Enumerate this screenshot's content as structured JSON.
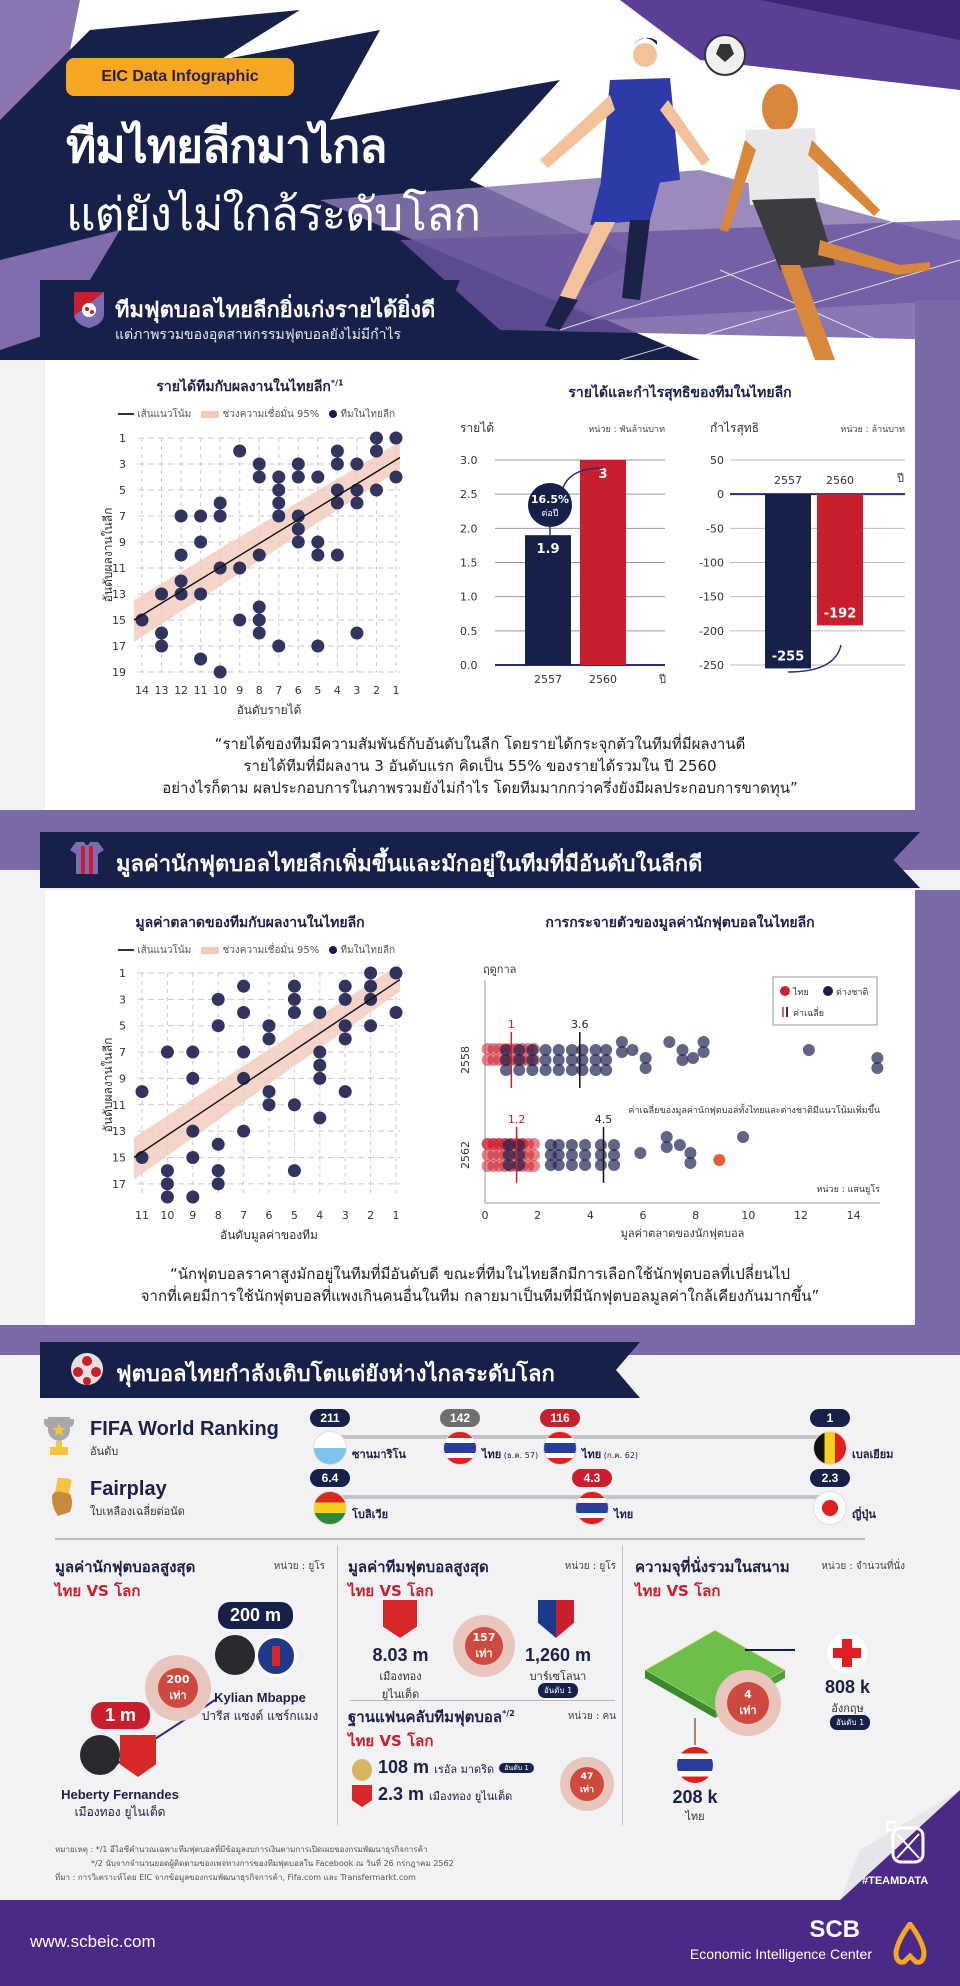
{
  "hero": {
    "badge": "EIC Data Infographic",
    "title_line1": "ทีมไทยลีกมาไกล",
    "title_line2": "แต่ยังไม่ใกล้ระดับโลก"
  },
  "section1": {
    "title": "ทีมฟุตบอลไทยลีกยิ่งเก่งรายได้ยิ่งดี",
    "subtitle": "แต่ภาพรวมของอุตสาหกรรมฟุตบอลยังไม่มีกำไร",
    "quote_lines": [
      "“รายได้ของทีมมีความสัมพันธ์กับอันดับในลีก โดยรายได้กระจุกตัวในทีมที่มีผลงานดี",
      "รายได้ทีมที่มีผลงาน 3 อันดับแรก คิดเป็น 55% ของรายได้รวมใน ปี 2560",
      "อย่างไรก็ตาม ผลประกอบการในภาพรวมยังไม่กำไร โดยทีมมากกว่าครึ่งยังมีผลประกอบการขาดทุน”"
    ]
  },
  "section2": {
    "title": "มูลค่านักฟุตบอลไทยลีกเพิ่มขึ้นและมักอยู่ในทีมที่มีอันดับในลีกดี",
    "quote_lines": [
      "“นักฟุตบอลราคาสูงมักอยู่ในทีมที่มีอันดับดี ขณะที่ทีมในไทยลีกมีการเลือกใช้นักฟุตบอลที่เปลี่ยนไป",
      "จากที่เคยมีการใช้นักฟุตบอลที่แพงเกินคนอื่นในทีม กลายมาเป็นทีมที่มีนักฟุตบอลมูลค่าใกล้เคียงกันมากขึ้น”"
    ]
  },
  "legend_common": {
    "trend": "เส้นแนวโน้ม",
    "ci": "ช่วงความเชื่อมั่น 95%",
    "teams": "ทีมในไทยลีก"
  },
  "chart_data": [
    {
      "type": "scatter",
      "title": "รายได้ทีมกับผลงานในไทยลีก",
      "title_note": "*/1",
      "xlabel": "อันดับรายได้",
      "ylabel": "อันดับผลงานในลีก",
      "x_ticks": [
        14,
        13,
        12,
        11,
        10,
        9,
        8,
        7,
        6,
        5,
        4,
        3,
        2,
        1
      ],
      "y_ticks": [
        1,
        3,
        5,
        7,
        9,
        11,
        13,
        15,
        17,
        19
      ],
      "x_reversed": true,
      "y_reversed": true,
      "grid": true,
      "points": [
        [
          1,
          1
        ],
        [
          2,
          1
        ],
        [
          2,
          2
        ],
        [
          4,
          2
        ],
        [
          9,
          2
        ],
        [
          3,
          3
        ],
        [
          4,
          3
        ],
        [
          6,
          3
        ],
        [
          8,
          3
        ],
        [
          1,
          4
        ],
        [
          6,
          4
        ],
        [
          5,
          4
        ],
        [
          7,
          4
        ],
        [
          8,
          4
        ],
        [
          2,
          5
        ],
        [
          3,
          5
        ],
        [
          4,
          5
        ],
        [
          7,
          5
        ],
        [
          3,
          6
        ],
        [
          4,
          6
        ],
        [
          7,
          6
        ],
        [
          10,
          6
        ],
        [
          6,
          7
        ],
        [
          7,
          7
        ],
        [
          10,
          7
        ],
        [
          12,
          7
        ],
        [
          11,
          7
        ],
        [
          6,
          8
        ],
        [
          5,
          9
        ],
        [
          6,
          9
        ],
        [
          11,
          9
        ],
        [
          4,
          10
        ],
        [
          5,
          10
        ],
        [
          8,
          10
        ],
        [
          12,
          10
        ],
        [
          9,
          11
        ],
        [
          10,
          11
        ],
        [
          12,
          12
        ],
        [
          11,
          13
        ],
        [
          12,
          13
        ],
        [
          13,
          13
        ],
        [
          8,
          14
        ],
        [
          8,
          15
        ],
        [
          9,
          15
        ],
        [
          14,
          15
        ],
        [
          3,
          16
        ],
        [
          8,
          16
        ],
        [
          13,
          16
        ],
        [
          5,
          17
        ],
        [
          7,
          17
        ],
        [
          13,
          17
        ],
        [
          11,
          18
        ],
        [
          10,
          19
        ]
      ],
      "trend_line": {
        "from": [
          14,
          15
        ],
        "to": [
          1,
          2.5
        ]
      }
    },
    {
      "type": "bar",
      "title": "รายได้และกำไรสุทธิของทีมในไทยลีก",
      "subcharts": [
        {
          "ylabel": "รายได้",
          "unit": "หน่วย : พันล้านบาท",
          "xlabel": "ปี",
          "categories": [
            "2557",
            "2560"
          ],
          "values": [
            1.9,
            3
          ],
          "colors": [
            "#162049",
            "#c81e2e"
          ],
          "ylim": [
            0,
            3.0
          ],
          "y_ticks": [
            "3.0",
            "2.5",
            "2.0",
            "1.5",
            "1.0",
            "0.5",
            "0.0"
          ],
          "annotation": {
            "value": "16.5%",
            "label": "ต่อปี"
          }
        },
        {
          "ylabel": "กำไรสุทธิ",
          "unit": "หน่วย : ล้านบาท",
          "xlabel": "ปี",
          "categories": [
            "2557",
            "2560"
          ],
          "values": [
            -255,
            -192
          ],
          "colors": [
            "#162049",
            "#c81e2e"
          ],
          "ylim": [
            -250,
            50
          ],
          "y_ticks": [
            "50",
            "0",
            "-50",
            "-100",
            "-150",
            "-200",
            "-250"
          ]
        }
      ]
    },
    {
      "type": "scatter",
      "title": "มูลค่าตลาดของทีมกับผลงานในไทยลีก",
      "xlabel": "อันดับมูลค่าของทีม",
      "ylabel": "อันดับผลงานในลีก",
      "x_ticks": [
        11,
        10,
        9,
        8,
        7,
        6,
        5,
        4,
        3,
        2,
        1
      ],
      "y_ticks": [
        1,
        3,
        5,
        7,
        9,
        11,
        13,
        15,
        17
      ],
      "x_reversed": true,
      "y_reversed": true,
      "grid": true,
      "points": [
        [
          1,
          1
        ],
        [
          2,
          1
        ],
        [
          5,
          2
        ],
        [
          7,
          2
        ],
        [
          3,
          2
        ],
        [
          2,
          2
        ],
        [
          8,
          3
        ],
        [
          5,
          3
        ],
        [
          3,
          3
        ],
        [
          2,
          3
        ],
        [
          7,
          4
        ],
        [
          5,
          4
        ],
        [
          4,
          4
        ],
        [
          1,
          4
        ],
        [
          8,
          5
        ],
        [
          6,
          5
        ],
        [
          3,
          5
        ],
        [
          2,
          5
        ],
        [
          6,
          6
        ],
        [
          3,
          6
        ],
        [
          10,
          7
        ],
        [
          9,
          7
        ],
        [
          7,
          7
        ],
        [
          4,
          7
        ],
        [
          4,
          8
        ],
        [
          9,
          9
        ],
        [
          7,
          9
        ],
        [
          4,
          9
        ],
        [
          11,
          10
        ],
        [
          6,
          10
        ],
        [
          3,
          10
        ],
        [
          6,
          11
        ],
        [
          5,
          11
        ],
        [
          4,
          12
        ],
        [
          9,
          13
        ],
        [
          7,
          13
        ],
        [
          8,
          14
        ],
        [
          11,
          15
        ],
        [
          9,
          15
        ],
        [
          10,
          16
        ],
        [
          8,
          16
        ],
        [
          5,
          16
        ],
        [
          10,
          17
        ],
        [
          8,
          17
        ],
        [
          10,
          18
        ],
        [
          9,
          18
        ]
      ],
      "trend_line": {
        "from": [
          11,
          15
        ],
        "to": [
          1,
          1.5
        ]
      }
    },
    {
      "type": "scatter",
      "title": "การกระจายตัวของมูลค่านักฟุตบอลในไทยลีก",
      "xlabel": "มูลค่าตลาดของนักฟุตบอล",
      "ylabel": "ฤดูกาล",
      "unit": "หน่วย : แสนยูโร",
      "x_ticks": [
        0,
        2,
        4,
        6,
        8,
        10,
        12,
        14
      ],
      "xlim": [
        0,
        15
      ],
      "categories": [
        "2558",
        "2562"
      ],
      "legend": [
        {
          "name": "ไทย",
          "color": "#d0202e"
        },
        {
          "name": "ต่างชาติ",
          "color": "#162049"
        },
        {
          "name": "ค่าเฉลี่ย",
          "color": "#e06060"
        }
      ],
      "means": [
        {
          "season": "2558",
          "thai": 1,
          "foreign": 3.6
        },
        {
          "season": "2562",
          "thai": 1.2,
          "foreign": 4.5
        }
      ],
      "annotation": "ค่าเฉลี่ยของมูลค่านักฟุตบอลทั้งไทยและต่างชาติมีแนวโน้มเพิ่มขึ้น",
      "foreign_points_2558": [
        0.8,
        1.3,
        1.8,
        2.3,
        2.8,
        3.3,
        3.7,
        4.2,
        4.6,
        5.2,
        5.6,
        6.1,
        7.0,
        7.5,
        7.9,
        8.3,
        12.3,
        14.9
      ],
      "foreign_points_2562": [
        0.9,
        1.3,
        2.5,
        2.8,
        3.3,
        3.8,
        4.4,
        4.9,
        5.9,
        6.9,
        7.4,
        7.8,
        9.8
      ],
      "thai_outlier_2562": 8.9
    }
  ],
  "section3": {
    "title": "ฟุตบอลไทยกำลังเติบโตแต่ยังห่างไกลระดับโลก",
    "fifa": {
      "label": "FIFA World Ranking",
      "sublabel": "อันดับ",
      "markers": [
        {
          "value": "211",
          "name": "ซานมาริโน",
          "note": "",
          "color": "#162049"
        },
        {
          "value": "142",
          "name": "ไทย",
          "note": "(ธ.ค. 57)",
          "color": "#6e6e6e"
        },
        {
          "value": "116",
          "name": "ไทย",
          "note": "(ก.ค. 62)",
          "color": "#c81e2e"
        },
        {
          "value": "1",
          "name": "เบลเยียม",
          "note": "",
          "color": "#162049"
        }
      ]
    },
    "fairplay": {
      "label": "Fairplay",
      "sublabel": "ใบเหลืองเฉลี่ยต่อนัด",
      "markers": [
        {
          "value": "6.4",
          "name": "โบลิเวีย",
          "color": "#162049"
        },
        {
          "value": "4.3",
          "name": "ไทย",
          "color": "#c81e2e"
        },
        {
          "value": "2.3",
          "name": "ญี่ปุ่น",
          "color": "#162049"
        }
      ]
    },
    "player_value": {
      "title": "มูลค่านักฟุตบอลสูงสุด",
      "vs": "ไทย VS โลก",
      "unit": "หน่วย : ยูโร",
      "world_value": "200 m",
      "world_name": "Kylian Mbappe",
      "world_club": "ปารีส แซงต์ แชร์กแมง",
      "thai_value": "1 m",
      "thai_name": "Heberty Fernandes",
      "thai_club": "เมืองทอง ยูไนเต็ด",
      "ratio": "200",
      "ratio_unit": "เท่า"
    },
    "team_value": {
      "title": "มูลค่าทีมฟุตบอลสูงสุด",
      "vs": "ไทย VS โลก",
      "unit": "หน่วย : ยูโร",
      "thai_value": "8.03 m",
      "thai_name_line1": "เมืองทอง",
      "thai_name_line2": "ยูไนเต็ด",
      "world_value": "1,260 m",
      "world_name": "บาร์เซโลนา",
      "world_rank": "อันดับ 1",
      "ratio": "157",
      "ratio_unit": "เท่า"
    },
    "fanbase": {
      "title": "ฐานแฟนคลับทีมฟุตบอล",
      "note": "*/2",
      "vs": "ไทย VS โลก",
      "unit": "หน่วย : คน",
      "world_value": "108 m",
      "world_name": "เรอัล มาดริด",
      "world_rank": "อันดับ 1",
      "thai_value": "2.3 m",
      "thai_name": "เมืองทอง ยูไนเต็ด",
      "ratio": "47",
      "ratio_unit": "เท่า"
    },
    "stadium": {
      "title": "ความจุที่นั่งรวมในสนาม",
      "vs": "ไทย VS โลก",
      "unit": "หน่วย : จำนวนที่นั่ง",
      "world_value": "808 k",
      "world_name": "อังกฤษ",
      "world_rank": "อันดับ 1",
      "thai_value": "208 k",
      "thai_name": "ไทย",
      "ratio": "4",
      "ratio_unit": "เท่า"
    }
  },
  "notes": {
    "line1": "หมายเหตุ : */1 อีไอซีคำนวณเฉพาะทีมฟุตบอลที่มีข้อมูลงบการเงินตามการเปิดเผยของกรมพัฒนาธุรกิจการค้า",
    "line2": "*/2 นับจากจำนวนยอดผู้ติดตามของเพจทางการของทีมฟุตบอลใน Facebook ณ วันที่ 26 กรกฎาคม 2562",
    "line3": "ที่มา : การวิเคราะห์โดย EIC จากข้อมูลของกรมพัฒนาธุรกิจการค้า, Fifa.com และ Transfermarkt.com",
    "teamdata": "#TEAMDATA"
  },
  "footer": {
    "url": "www.scbeic.com",
    "brand": "SCB",
    "brand_sub": "Economic Intelligence Center"
  },
  "colors": {
    "navy": "#162049",
    "red": "#c81e2e",
    "purple": "#4a2a86",
    "orange": "#f5a623",
    "ci_band": "#f2cbbd"
  }
}
